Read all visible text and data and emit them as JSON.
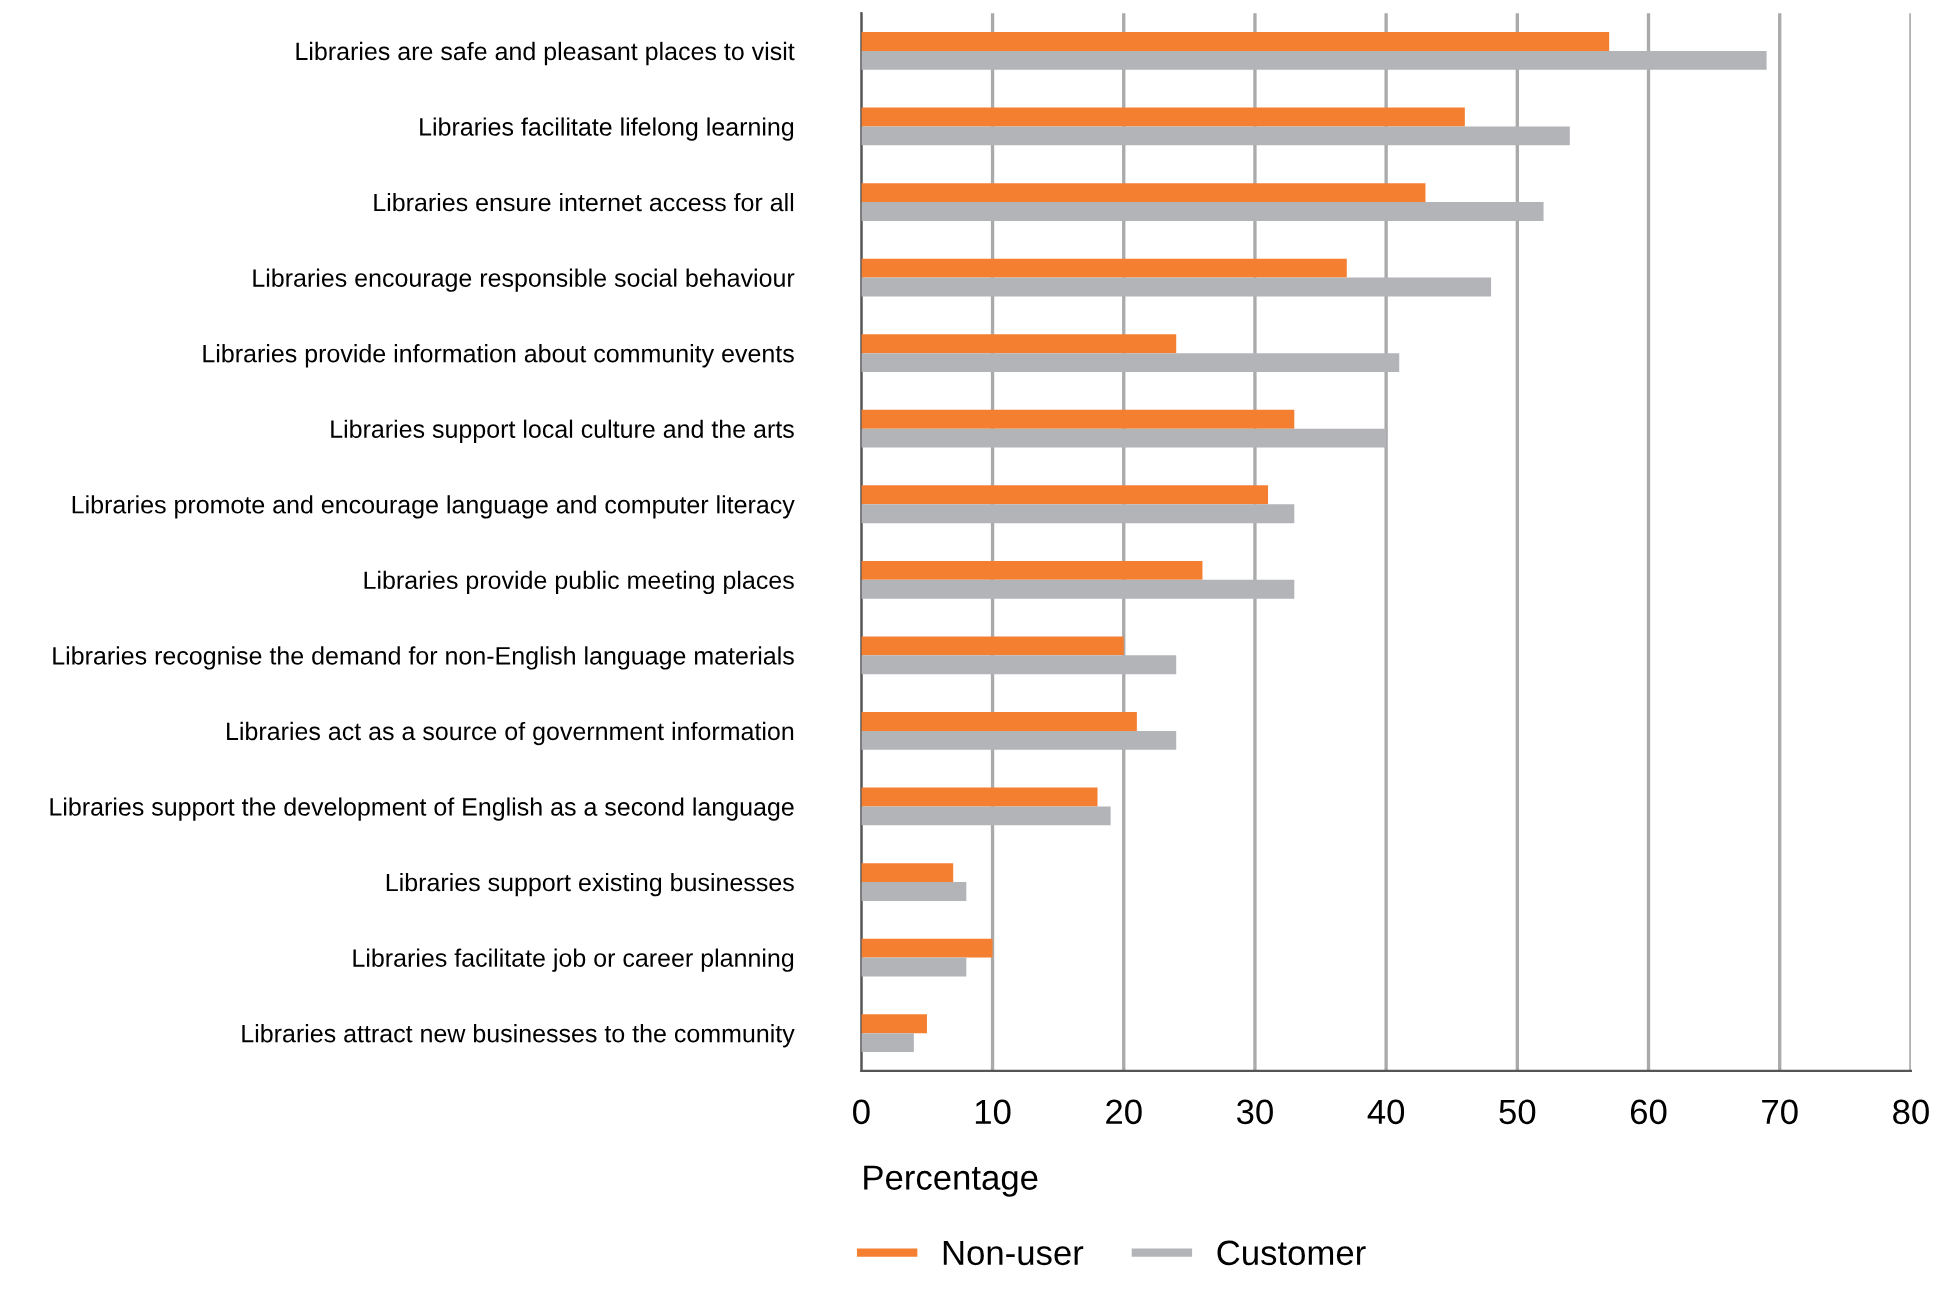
{
  "chart_data": {
    "type": "bar",
    "orientation": "horizontal",
    "xlabel": "Percentage",
    "categories": [
      "Libraries are safe and pleasant places to visit",
      "Libraries facilitate lifelong learning",
      "Libraries ensure internet access for all",
      "Libraries encourage responsible social behaviour",
      "Libraries provide information about community events",
      "Libraries support local culture and the arts",
      "Libraries promote and encourage language and computer literacy",
      "Libraries provide public meeting places",
      "Libraries recognise the demand for non-English language materials",
      "Libraries act as a source of government information",
      "Libraries support the development of English as a second language",
      "Libraries support existing businesses",
      "Libraries facilitate job or career planning",
      "Libraries attract new businesses to the community"
    ],
    "series": [
      {
        "name": "Non-user",
        "color": "#f47f30",
        "values": [
          57,
          46,
          43,
          37,
          24,
          33,
          31,
          26,
          20,
          21,
          18,
          7,
          10,
          5
        ]
      },
      {
        "name": "Customer",
        "color": "#b3b4b8",
        "values": [
          69,
          54,
          52,
          48,
          41,
          40,
          33,
          33,
          24,
          24,
          19,
          8,
          8,
          4
        ]
      }
    ],
    "xlim": [
      0,
      80
    ],
    "xticks": [
      0,
      10,
      20,
      30,
      40,
      50,
      60,
      70,
      80
    ],
    "grid": "x",
    "legend": "bottom"
  }
}
